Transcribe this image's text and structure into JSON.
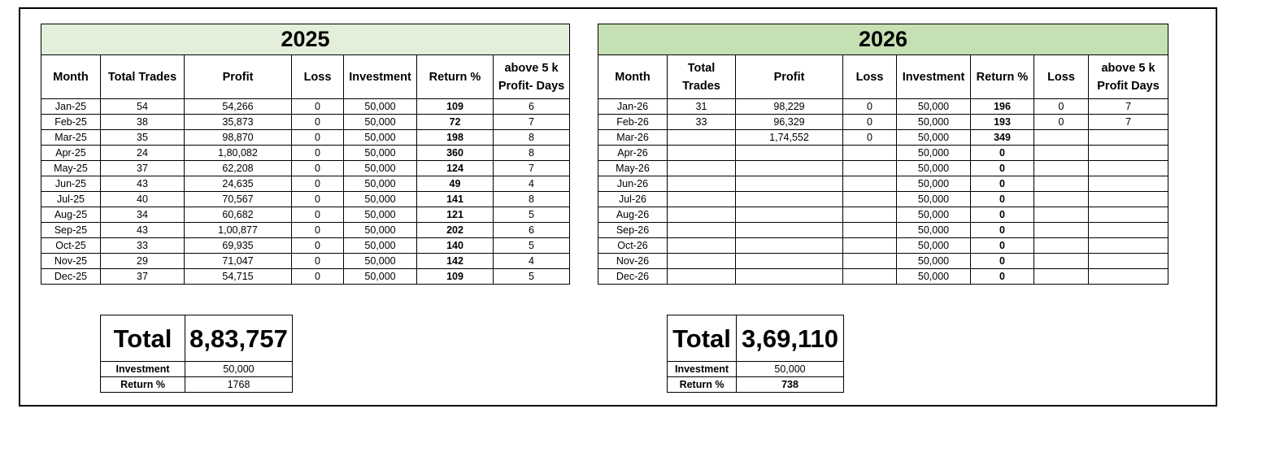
{
  "y2025": {
    "title": "2025",
    "headers": [
      "Month",
      "Total Trades",
      "Profit",
      "Loss",
      "Investment",
      "Return %",
      "above 5 k Profit- Days"
    ],
    "rows": [
      [
        "Jan-25",
        "54",
        "54,266",
        "0",
        "50,000",
        "109",
        "6"
      ],
      [
        "Feb-25",
        "38",
        "35,873",
        "0",
        "50,000",
        "72",
        "7"
      ],
      [
        "Mar-25",
        "35",
        "98,870",
        "0",
        "50,000",
        "198",
        "8"
      ],
      [
        "Apr-25",
        "24",
        "1,80,082",
        "0",
        "50,000",
        "360",
        "8"
      ],
      [
        "May-25",
        "37",
        "62,208",
        "0",
        "50,000",
        "124",
        "7"
      ],
      [
        "Jun-25",
        "43",
        "24,635",
        "0",
        "50,000",
        "49",
        "4"
      ],
      [
        "Jul-25",
        "40",
        "70,567",
        "0",
        "50,000",
        "141",
        "8"
      ],
      [
        "Aug-25",
        "34",
        "60,682",
        "0",
        "50,000",
        "121",
        "5"
      ],
      [
        "Sep-25",
        "43",
        "1,00,877",
        "0",
        "50,000",
        "202",
        "6"
      ],
      [
        "Oct-25",
        "33",
        "69,935",
        "0",
        "50,000",
        "140",
        "5"
      ],
      [
        "Nov-25",
        "29",
        "71,047",
        "0",
        "50,000",
        "142",
        "4"
      ],
      [
        "Dec-25",
        "37",
        "54,715",
        "0",
        "50,000",
        "109",
        "5"
      ]
    ],
    "summary": {
      "total_label": "Total",
      "total_value": "8,83,757",
      "investment_label": "Investment",
      "investment_value": "50,000",
      "return_label": "Return %",
      "return_value": "1768"
    }
  },
  "y2026": {
    "title": "2026",
    "headers": [
      "Month",
      "Total Trades",
      "Profit",
      "Loss",
      "Investment",
      "Return %",
      "Loss",
      "above 5 k Profit Days"
    ],
    "rows": [
      [
        "Jan-26",
        "31",
        "98,229",
        "0",
        "50,000",
        "196",
        "0",
        "7"
      ],
      [
        "Feb-26",
        "33",
        "96,329",
        "0",
        "50,000",
        "193",
        "0",
        "7"
      ],
      [
        "Mar-26",
        "",
        "1,74,552",
        "0",
        "50,000",
        "349",
        "",
        ""
      ],
      [
        "Apr-26",
        "",
        "",
        "",
        "50,000",
        "0",
        "",
        ""
      ],
      [
        "May-26",
        "",
        "",
        "",
        "50,000",
        "0",
        "",
        ""
      ],
      [
        "Jun-26",
        "",
        "",
        "",
        "50,000",
        "0",
        "",
        ""
      ],
      [
        "Jul-26",
        "",
        "",
        "",
        "50,000",
        "0",
        "",
        ""
      ],
      [
        "Aug-26",
        "",
        "",
        "",
        "50,000",
        "0",
        "",
        ""
      ],
      [
        "Sep-26",
        "",
        "",
        "",
        "50,000",
        "0",
        "",
        ""
      ],
      [
        "Oct-26",
        "",
        "",
        "",
        "50,000",
        "0",
        "",
        ""
      ],
      [
        "Nov-26",
        "",
        "",
        "",
        "50,000",
        "0",
        "",
        ""
      ],
      [
        "Dec-26",
        "",
        "",
        "",
        "50,000",
        "0",
        "",
        ""
      ]
    ],
    "summary": {
      "total_label": "Total",
      "total_value": "3,69,110",
      "investment_label": "Investment",
      "investment_value": "50,000",
      "return_label": "Return %",
      "return_value": "738"
    }
  },
  "colors": {
    "header_2025": "#e3efda",
    "header_2026": "#c5e0b3",
    "grid": "#000000"
  }
}
